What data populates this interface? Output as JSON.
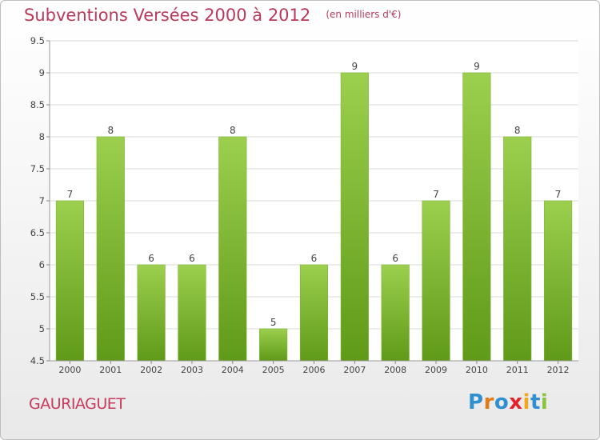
{
  "header": {
    "title": "Subventions Versées 2000 à 2012",
    "subtitle": "(en milliers d'€)"
  },
  "footer": {
    "place_name": "GAURIAGUET",
    "logo_letters": [
      "P",
      "r",
      "o",
      "x",
      "i",
      "t",
      "i"
    ],
    "logo_colors": [
      "#2f8fd0",
      "#e07b18",
      "#2f8fd0",
      "#e2232a",
      "#f0a81a",
      "#2f8fd0",
      "#8ac43f"
    ]
  },
  "colors": {
    "bar_light": "#9ccf4e",
    "bar_dark": "#5f9a18",
    "grid": "#d9d9d9",
    "axis_text": "#444444",
    "title": "#b8395a"
  },
  "chart_data": {
    "type": "bar",
    "categories": [
      "2000",
      "2001",
      "2002",
      "2003",
      "2004",
      "2005",
      "2006",
      "2007",
      "2008",
      "2009",
      "2010",
      "2011",
      "2012"
    ],
    "values": [
      7,
      8,
      6,
      6,
      8,
      5,
      6,
      9,
      6,
      7,
      9,
      8,
      7
    ],
    "data_labels": [
      "7",
      "8",
      "6",
      "6",
      "8",
      "5",
      "6",
      "9",
      "6",
      "7",
      "9",
      "8",
      "7"
    ],
    "yticks": [
      "4.5",
      "5",
      "5.5",
      "6",
      "6.5",
      "7",
      "7.5",
      "8",
      "8.5",
      "9",
      "9.5"
    ],
    "ylim": [
      4.5,
      9.5
    ],
    "grid": true,
    "title": "Subventions Versées 2000 à 2012",
    "xlabel": "",
    "ylabel": ""
  }
}
